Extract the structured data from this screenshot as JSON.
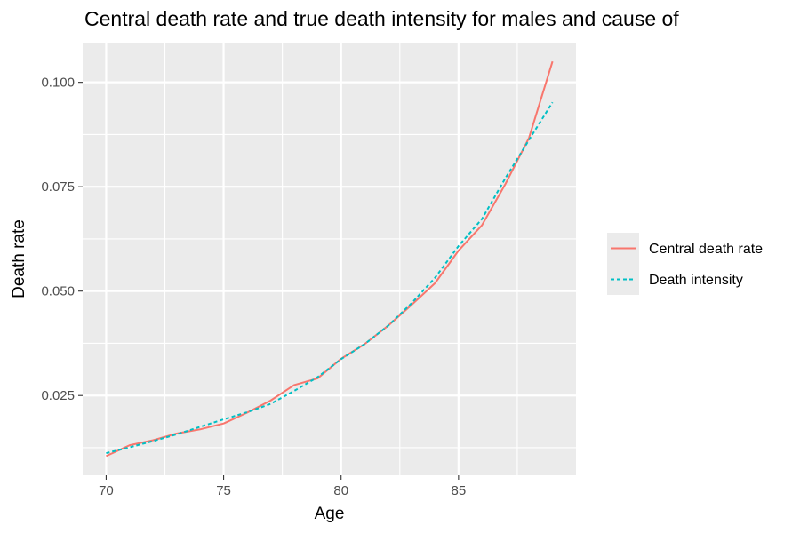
{
  "chart_data": {
    "type": "line",
    "title": "Central death rate and true death intensity for males and cause of",
    "xlabel": "Age",
    "ylabel": "Death rate",
    "xlim": [
      69.0,
      90.0
    ],
    "ylim": [
      0.0059,
      0.1095
    ],
    "x_ticks": [
      70,
      75,
      80,
      85
    ],
    "x_minor_ticks": [
      72.5,
      77.5,
      82.5,
      87.5
    ],
    "y_ticks": [
      0.025,
      0.05,
      0.075,
      0.1
    ],
    "y_tick_labels": [
      "0.025",
      "0.050",
      "0.075",
      "0.100"
    ],
    "y_minor_ticks": [
      0.0125,
      0.0375,
      0.0625,
      0.0875
    ],
    "grid": true,
    "legend_position": "right",
    "x": [
      70,
      71,
      72,
      73,
      74,
      75,
      76,
      77,
      78,
      79,
      80,
      81,
      82,
      83,
      84,
      85,
      86,
      87,
      88,
      89
    ],
    "series": [
      {
        "name": "Central death rate",
        "color": "#F8766D",
        "dash": "solid",
        "values": [
          0.0105,
          0.0131,
          0.0143,
          0.0159,
          0.0169,
          0.0183,
          0.0209,
          0.0238,
          0.0275,
          0.0291,
          0.0338,
          0.0373,
          0.0417,
          0.0467,
          0.0519,
          0.0597,
          0.0658,
          0.0757,
          0.0867,
          0.105
        ]
      },
      {
        "name": "Death intensity",
        "color": "#00BFC4",
        "dash": "dashed",
        "values": [
          0.0112,
          0.0126,
          0.0141,
          0.0157,
          0.0175,
          0.0193,
          0.021,
          0.023,
          0.0261,
          0.0294,
          0.0337,
          0.0373,
          0.0417,
          0.0471,
          0.0532,
          0.0608,
          0.0673,
          0.0771,
          0.0862,
          0.0952
        ]
      }
    ]
  }
}
